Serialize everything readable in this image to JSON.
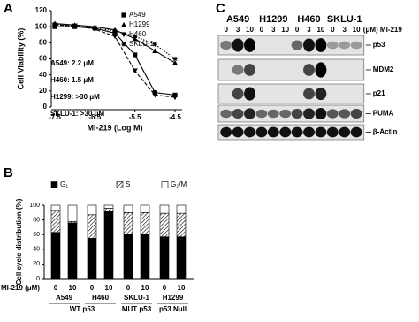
{
  "panel_labels": [
    "A",
    "B",
    "C"
  ],
  "chart_data": [
    {
      "type": "line",
      "x_label": "MI-219 (Log M)",
      "y_label": "Cell Viability (%)",
      "x": [
        -7.5,
        -7,
        -6.5,
        -6,
        -5.5,
        -5,
        -4.5
      ],
      "xlim": [
        -7.5,
        -4.5
      ],
      "xticks": [
        -7.5,
        -6.5,
        -5.5,
        -4.5
      ],
      "ylim": [
        0,
        120
      ],
      "yticks": [
        0,
        20,
        40,
        60,
        80,
        100,
        120
      ],
      "legend": "upper right",
      "series": [
        {
          "name": "A549",
          "color": "#000000",
          "marker": "square",
          "dash": "solid",
          "values": [
            100,
            100,
            98,
            92,
            65,
            18,
            15
          ]
        },
        {
          "name": "H1299",
          "color": "#000000",
          "marker": "triangle",
          "dash": "solid",
          "values": [
            104,
            102,
            100,
            96,
            85,
            70,
            55
          ]
        },
        {
          "name": "H460",
          "color": "#000000",
          "marker": "triangle-down",
          "dash": "dashed",
          "values": [
            102,
            101,
            97,
            88,
            45,
            15,
            12
          ]
        },
        {
          "name": "SKLU-1",
          "color": "#000000",
          "marker": "star",
          "dash": "dotted",
          "values": [
            103,
            101,
            98,
            95,
            88,
            78,
            60
          ]
        }
      ],
      "annotations": [
        "A549: 2.2 μM",
        "H460: 1.5 μM",
        "H1299: >30 μM",
        "SKLU-1: >30 μM"
      ]
    },
    {
      "type": "stacked_bar",
      "y_label": "Cell cycle distribution (%)",
      "x_label": "MI-219 (μM)",
      "categories": [
        "0",
        "10",
        "0",
        "10",
        "0",
        "10",
        "0",
        "10"
      ],
      "groups": [
        "A549",
        "H460",
        "SKLU-1",
        "H1299"
      ],
      "subgroups": [
        "WT p53",
        "MUT p53",
        "p53 Null"
      ],
      "ylim": [
        0,
        100
      ],
      "yticks": [
        0,
        20,
        40,
        60,
        80,
        100
      ],
      "legend": "top",
      "series": [
        {
          "name": "G₁",
          "color": "#000000",
          "values": [
            63,
            76,
            55,
            92,
            60,
            60,
            57,
            57
          ]
        },
        {
          "name": "S",
          "color": "#000000",
          "pattern": "hatch",
          "values": [
            30,
            2,
            32,
            4,
            30,
            30,
            32,
            32
          ]
        },
        {
          "name": "G₂/M",
          "color": "#ffffff",
          "values": [
            7,
            22,
            13,
            4,
            10,
            10,
            11,
            11
          ]
        }
      ]
    }
  ],
  "blot": {
    "cell_lines": [
      "A549",
      "H1299",
      "H460",
      "SKLU-1"
    ],
    "doses": [
      "0",
      "3",
      "10"
    ],
    "dose_label": "(μM) MI-219",
    "proteins": [
      "p53",
      "MDM2",
      "p21",
      "PUMA",
      "β-Actin"
    ]
  }
}
